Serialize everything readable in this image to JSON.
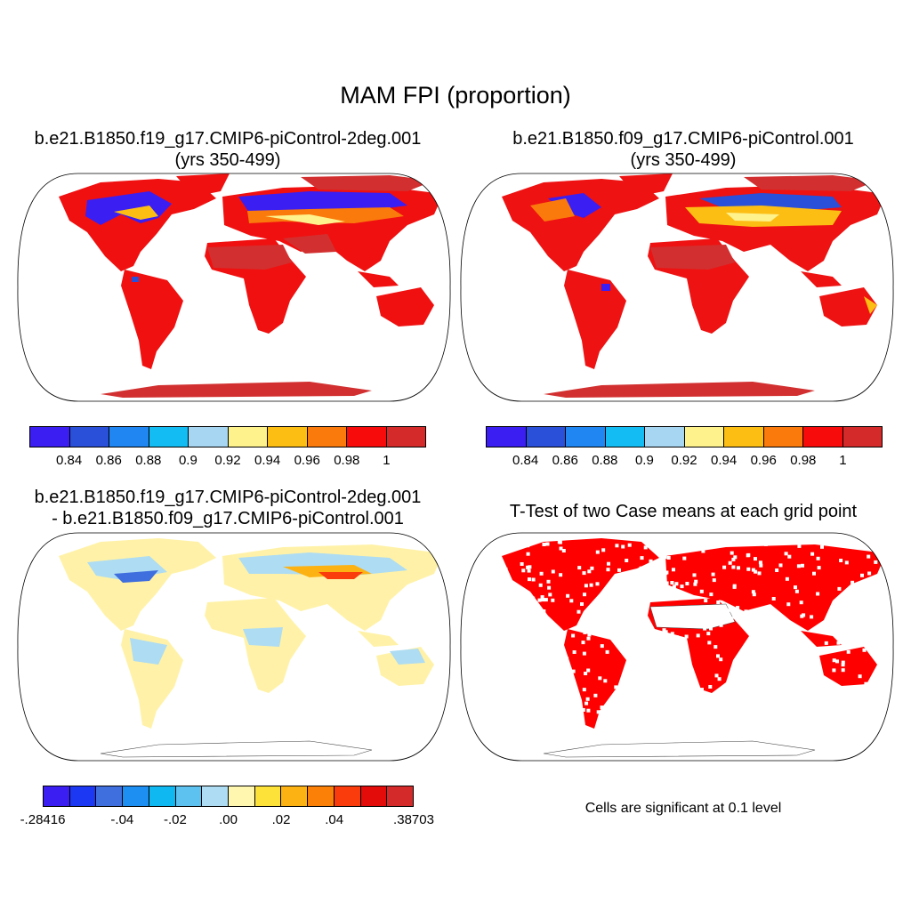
{
  "title": "MAM FPI (proportion)",
  "panels": {
    "top_left": {
      "title_line1": "b.e21.B1850.f19_g17.CMIP6-piControl-2deg.001",
      "title_line2": "(yrs 350-499)"
    },
    "top_right": {
      "title_line1": "b.e21.B1850.f09_g17.CMIP6-piControl.001",
      "title_line2": "(yrs 350-499)"
    },
    "bottom_left": {
      "title_line1": "b.e21.B1850.f19_g17.CMIP6-piControl-2deg.001",
      "title_line2": "- b.e21.B1850.f09_g17.CMIP6-piControl.001"
    },
    "bottom_right": {
      "title_line1": "T-Test of two Case means at each grid point",
      "note": "Cells are significant at 0.1 level"
    }
  },
  "colorbars": {
    "case": {
      "colors": [
        "#3b1ef2",
        "#2a4fd8",
        "#1f86f2",
        "#13bcf2",
        "#a6d6f2",
        "#fdf28c",
        "#fdbe14",
        "#fb7a0c",
        "#f80b0b",
        "#d52a2a"
      ],
      "labels": [
        "0.84",
        "0.86",
        "0.88",
        "0.9",
        "0.92",
        "0.94",
        "0.96",
        "0.98",
        "1"
      ]
    },
    "diff": {
      "colors": [
        "#3b1ef2",
        "#1c38f2",
        "#3f6ede",
        "#1d8ef2",
        "#10b8f2",
        "#5dc2f0",
        "#aedcf2",
        "#fff7b0",
        "#fde23a",
        "#fdb214",
        "#fb8008",
        "#fa3c0c",
        "#e40b0b",
        "#d52a2a"
      ],
      "labels": [
        "-.28416",
        "-.04",
        "-.02",
        ".00",
        ".02",
        ".04",
        ".38703"
      ]
    }
  },
  "map_colors": {
    "case1_land": "#f01010",
    "case1_desert": "#d23030",
    "case2_land": "#ee1212",
    "case2_desert": "#d23030",
    "diff_land": "#fff2a8",
    "ttest_sig": "#ff0000"
  }
}
